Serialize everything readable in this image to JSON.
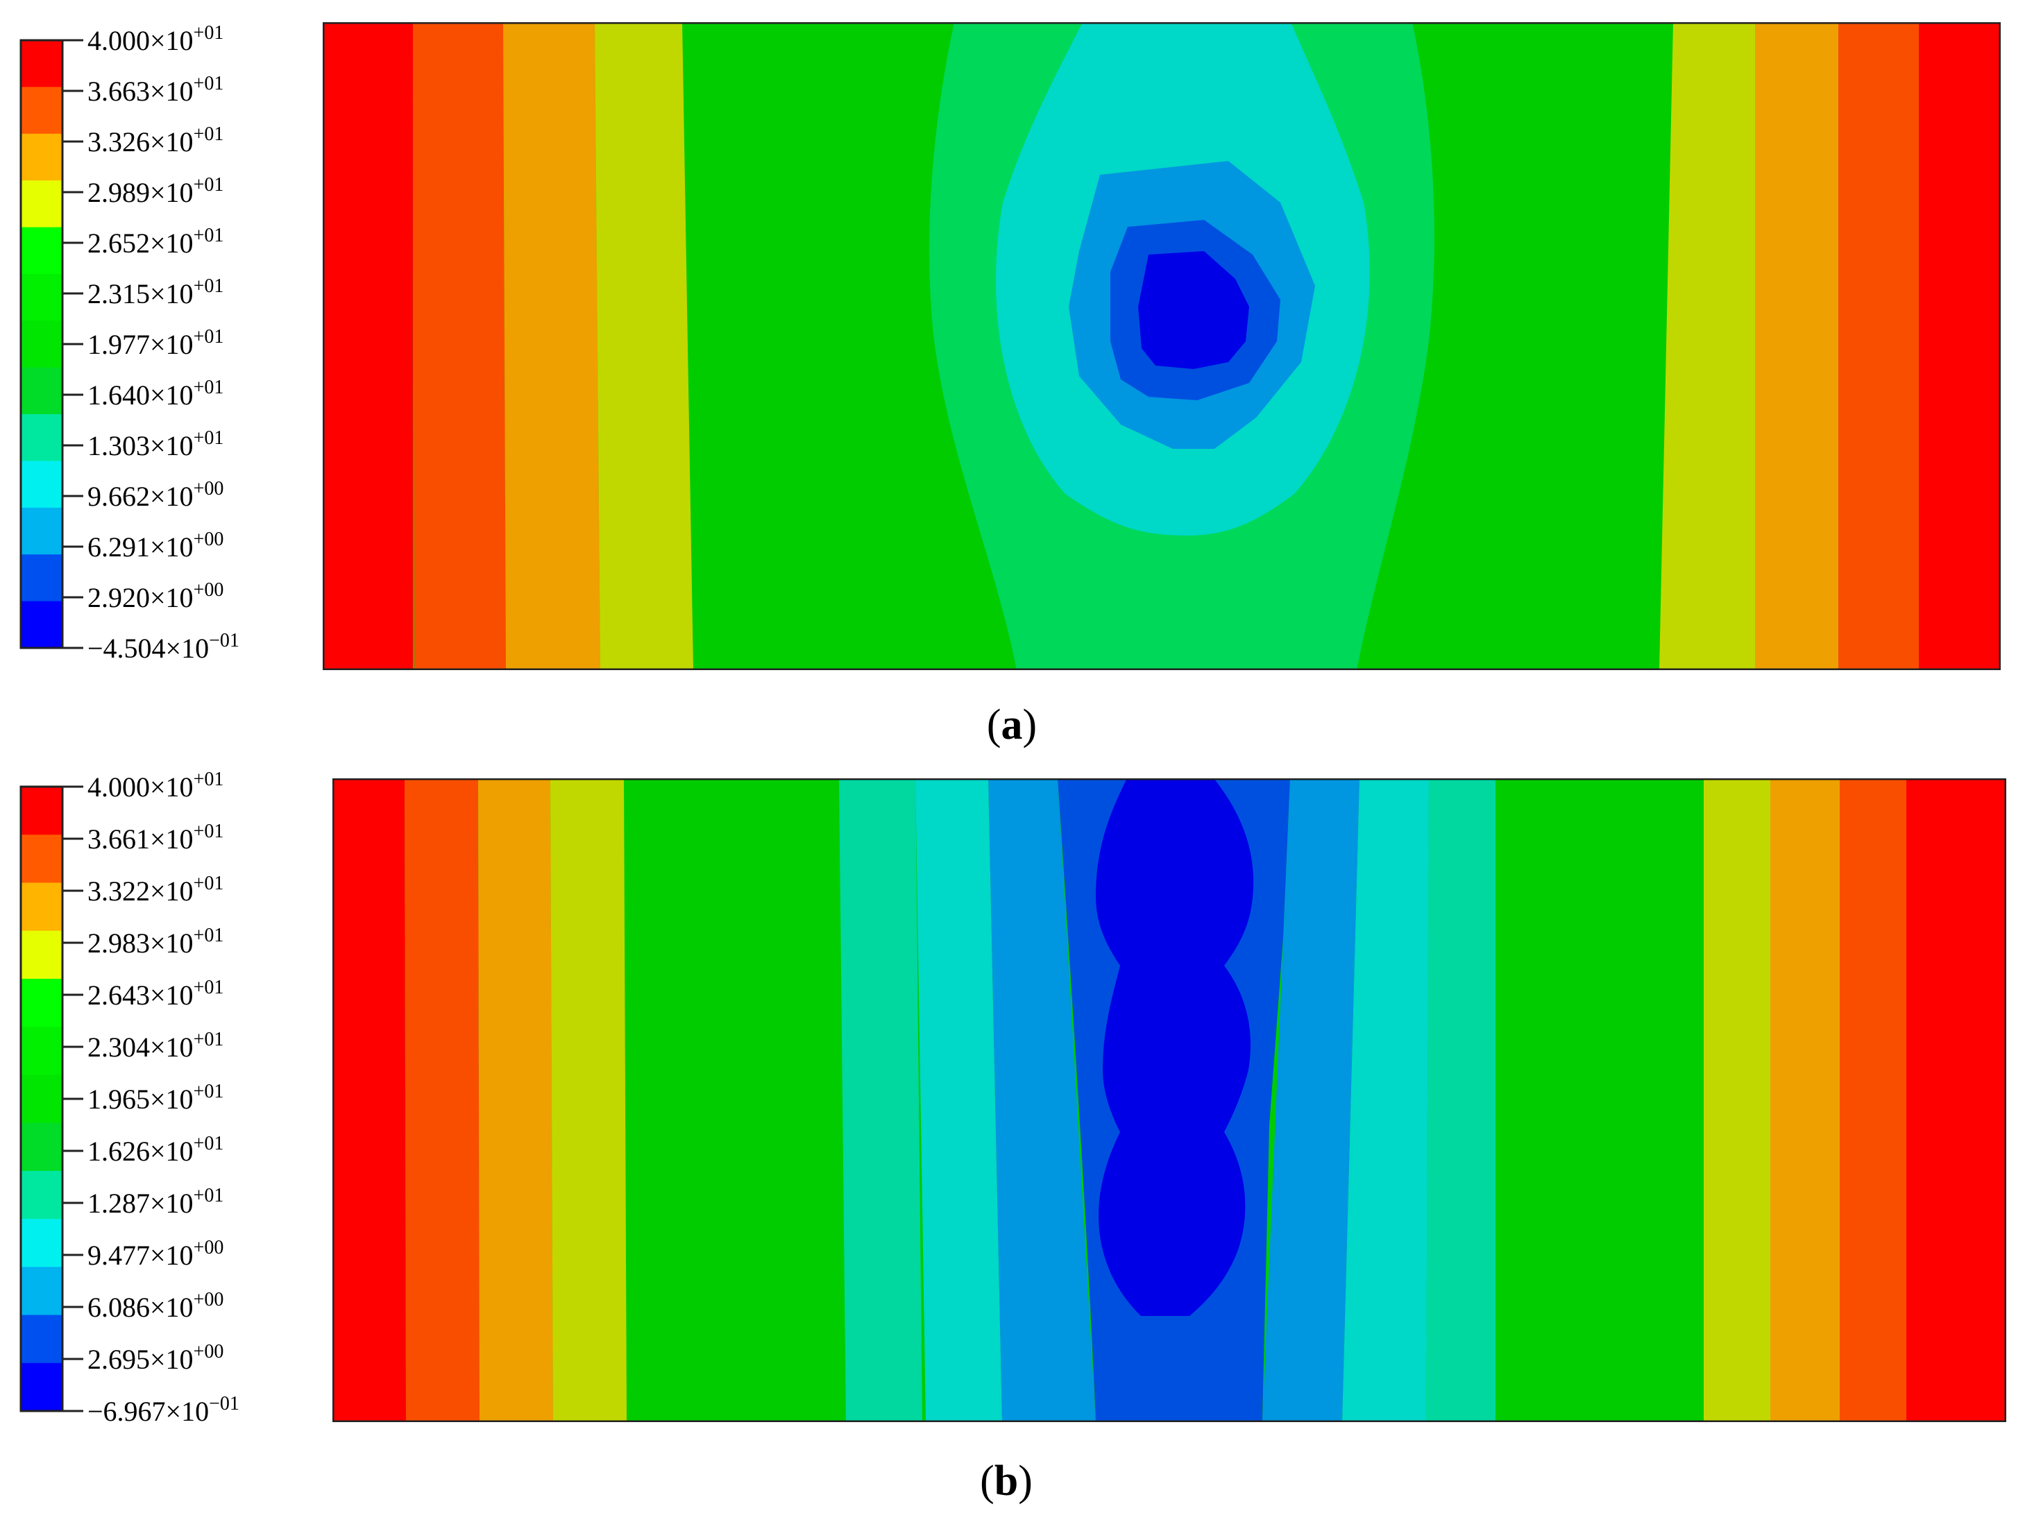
{
  "panels": [
    {
      "id": "a",
      "label_letter": "a",
      "legend_values": [
        {
          "mantissa": "4.000",
          "exp": "+01"
        },
        {
          "mantissa": "3.663",
          "exp": "+01"
        },
        {
          "mantissa": "3.326",
          "exp": "+01"
        },
        {
          "mantissa": "2.989",
          "exp": "+01"
        },
        {
          "mantissa": "2.652",
          "exp": "+01"
        },
        {
          "mantissa": "2.315",
          "exp": "+01"
        },
        {
          "mantissa": "1.977",
          "exp": "+01"
        },
        {
          "mantissa": "1.640",
          "exp": "+01"
        },
        {
          "mantissa": "1.303",
          "exp": "+01"
        },
        {
          "mantissa": "9.662",
          "exp": "+00"
        },
        {
          "mantissa": "6.291",
          "exp": "+00"
        },
        {
          "mantissa": "2.920",
          "exp": "+00"
        },
        {
          "mantissa": "−4.504",
          "exp": "−01"
        }
      ]
    },
    {
      "id": "b",
      "label_letter": "b",
      "legend_values": [
        {
          "mantissa": "4.000",
          "exp": "+01"
        },
        {
          "mantissa": "3.661",
          "exp": "+01"
        },
        {
          "mantissa": "3.322",
          "exp": "+01"
        },
        {
          "mantissa": "2.983",
          "exp": "+01"
        },
        {
          "mantissa": "2.643",
          "exp": "+01"
        },
        {
          "mantissa": "2.304",
          "exp": "+01"
        },
        {
          "mantissa": "1.965",
          "exp": "+01"
        },
        {
          "mantissa": "1.626",
          "exp": "+01"
        },
        {
          "mantissa": "1.287",
          "exp": "+01"
        },
        {
          "mantissa": "9.477",
          "exp": "+00"
        },
        {
          "mantissa": "6.086",
          "exp": "+00"
        },
        {
          "mantissa": "2.695",
          "exp": "+00"
        },
        {
          "mantissa": "−6.967",
          "exp": "−01"
        }
      ]
    }
  ],
  "legend_colors": [
    "#ff0000",
    "#ff5a00",
    "#ffb400",
    "#e6ff00",
    "#00ff00",
    "#00f000",
    "#00e600",
    "#00dc28",
    "#00e8a0",
    "#00f0f0",
    "#00b4f0",
    "#0050f0",
    "#0000ff"
  ],
  "field_colors": {
    "red": "#ff0000",
    "orange_red": "#f94e00",
    "orange": "#eda000",
    "yellow": "#c1d800",
    "green": "#00cc00",
    "green_light": "#00d85a",
    "mint": "#00d8a0",
    "cyan": "#00d8c8",
    "sky": "#0096e0",
    "blue": "#0050e0",
    "deep_blue": "#0000e6"
  }
}
